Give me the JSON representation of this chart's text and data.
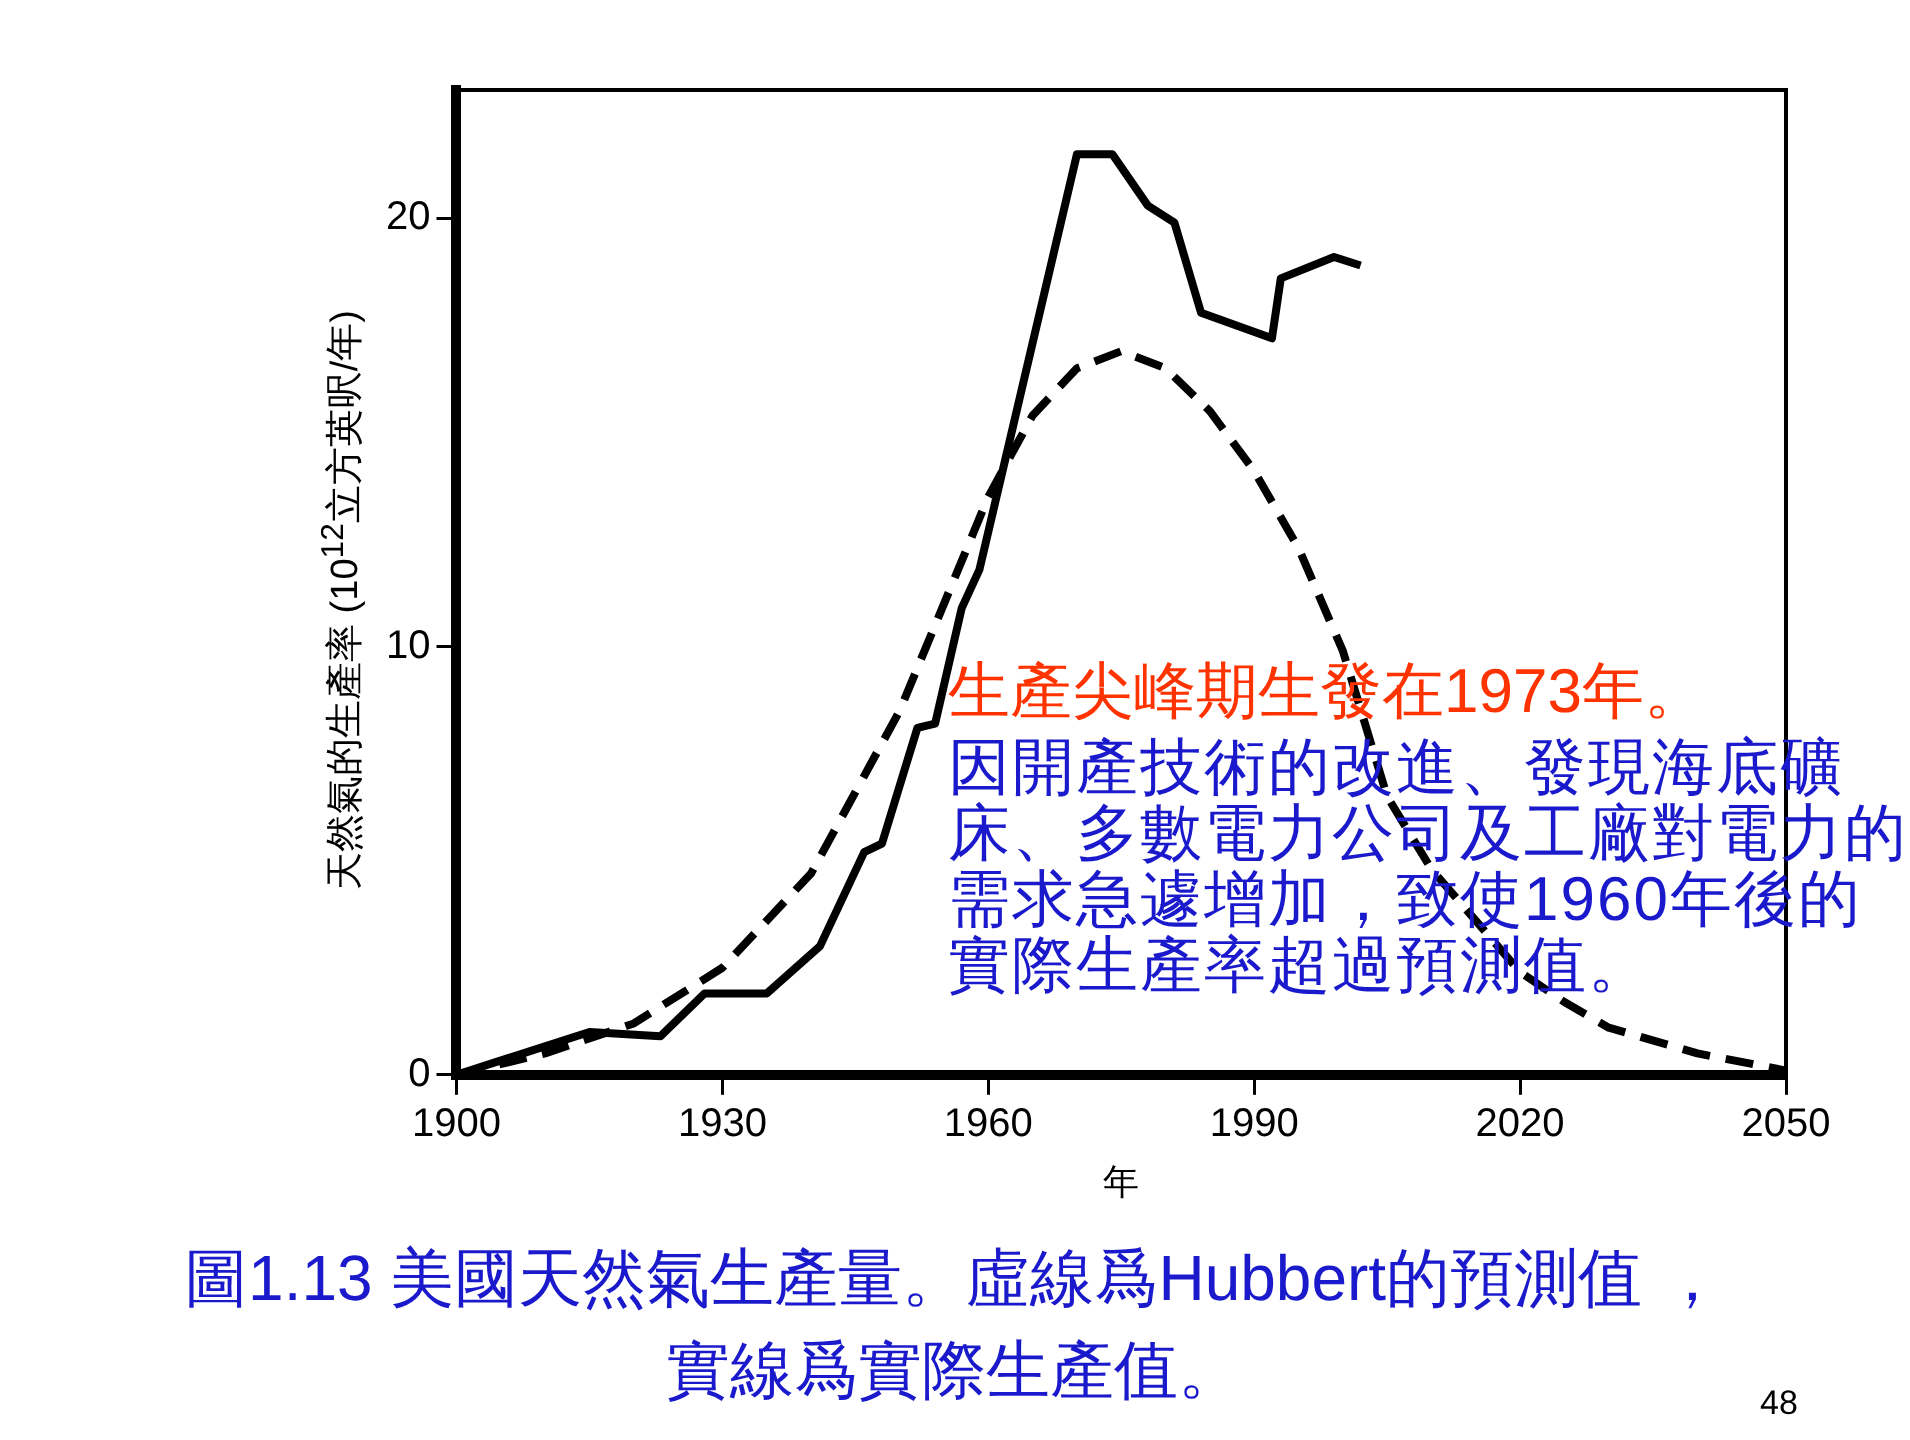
{
  "chart_data": {
    "type": "line",
    "xlabel": "年",
    "ylabel": "天然氣的生產率 (10$^{12}$立方英呎/年)",
    "xlim": [
      1900,
      2050
    ],
    "xticks": [
      1900,
      1930,
      1960,
      1990,
      2020,
      2050
    ],
    "ylim": [
      0,
      23
    ],
    "yticks": [
      0,
      10,
      20
    ],
    "grid": false,
    "legend": false,
    "marker": "none",
    "series": [
      {
        "color": "#000000",
        "line_style": "solid",
        "x": [
          1900,
          1915,
          1923,
          1928,
          1935,
          1941,
          1946,
          1948,
          1952,
          1954,
          1957,
          1959,
          1970,
          1974,
          1978,
          1981,
          1984,
          1992,
          1993,
          1999,
          2002
        ],
        "values": [
          0,
          1.0,
          0.9,
          1.9,
          1.9,
          3.0,
          5.2,
          5.4,
          8.1,
          8.2,
          10.9,
          11.8,
          21.5,
          21.5,
          20.3,
          19.9,
          17.8,
          17.2,
          18.6,
          19.1,
          18.9
        ]
      },
      {
        "color": "#000000",
        "line_style": "dashed",
        "x": [
          1900,
          1910,
          1920,
          1930,
          1940,
          1950,
          1960,
          1965,
          1970,
          1975,
          1980,
          1985,
          1990,
          1995,
          2000,
          2005,
          2010,
          2015,
          2020,
          2025,
          2030,
          2040,
          2050
        ],
        "values": [
          0,
          0.5,
          1.2,
          2.5,
          4.7,
          8.5,
          13.5,
          15.4,
          16.5,
          16.9,
          16.5,
          15.5,
          14.1,
          12.3,
          9.9,
          6.5,
          4.8,
          3.6,
          2.4,
          1.7,
          1.1,
          0.5,
          0.1
        ]
      }
    ],
    "annotations": [
      "生產尖峰期生發在1973年。",
      "因開產技術的改進、發現海底礦床、多數電力公司及工廠對電力的需求急遽增加，致使1960年後的實際生產率超過預測值。",
      "圖1.13 美國天然氣生產量。虛線爲Hubbert的預測值 ，實線爲實際生產值。",
      "48"
    ]
  }
}
